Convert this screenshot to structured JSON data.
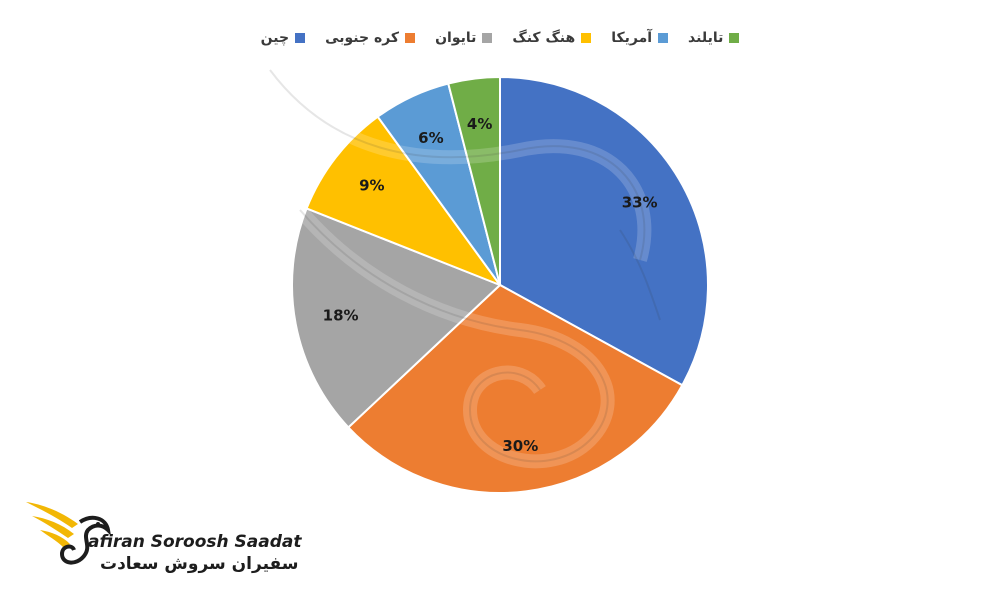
{
  "chart_data": {
    "type": "pie",
    "labels": [
      "چین",
      "کره جنوبی",
      "تایوان",
      "هنگ کنگ",
      "آمریکا",
      "تایلند"
    ],
    "values": [
      33,
      30,
      18,
      9,
      6,
      4
    ],
    "value_labels": [
      "33%",
      "30%",
      "18%",
      "9%",
      "6%",
      "4%"
    ],
    "colors": [
      "#4472C4",
      "#ED7D31",
      "#A5A5A5",
      "#FFC000",
      "#5B9BD5",
      "#70AD47"
    ],
    "legend_position": "top",
    "start_angle": "12 o'clock",
    "direction": "clockwise"
  },
  "watermark": {
    "brand_en": "afiran Soroosh Saadat",
    "brand_fa": "سفیران سروش سعادت",
    "logo_colors": [
      "#F2B705",
      "#1d1d1d"
    ]
  }
}
